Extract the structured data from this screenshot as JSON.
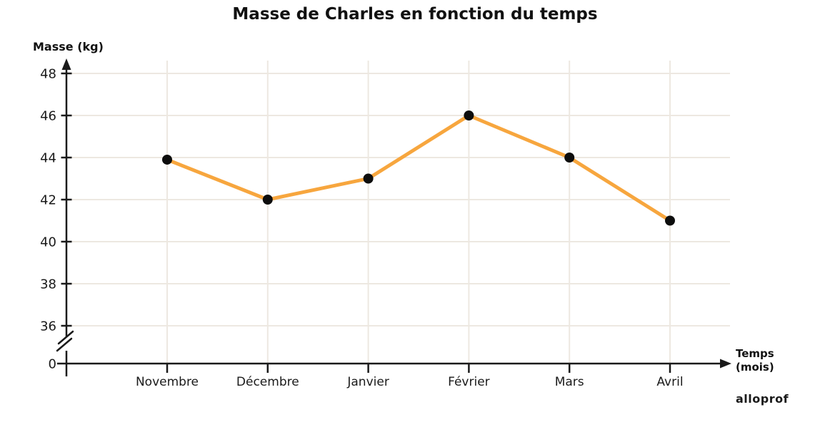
{
  "page": {
    "background": "#ffffff"
  },
  "watermark": "alloprof",
  "chart_data": {
    "type": "line",
    "title": "Masse de Charles en fonction du temps",
    "ylabel": "Masse (kg)",
    "xlabel": "Temps (mois)",
    "xlabel_lines": [
      "Temps",
      "(mois)"
    ],
    "categories": [
      "Novembre",
      "Décembre",
      "Janvier",
      "Février",
      "Mars",
      "Avril"
    ],
    "values": [
      43.9,
      42,
      43,
      46,
      44,
      41
    ],
    "yticks": [
      48,
      46,
      44,
      42,
      40,
      38,
      36
    ],
    "origin_label": "0",
    "axis_break": true,
    "grid": true,
    "ylim_display": [
      36,
      48
    ],
    "legend": "none",
    "colors": {
      "line": "#F7A63E",
      "marker": "#0d0d0d",
      "grid": "#EDE8E1",
      "axis": "#1a1a1a",
      "text": "#1a1a1a"
    }
  }
}
